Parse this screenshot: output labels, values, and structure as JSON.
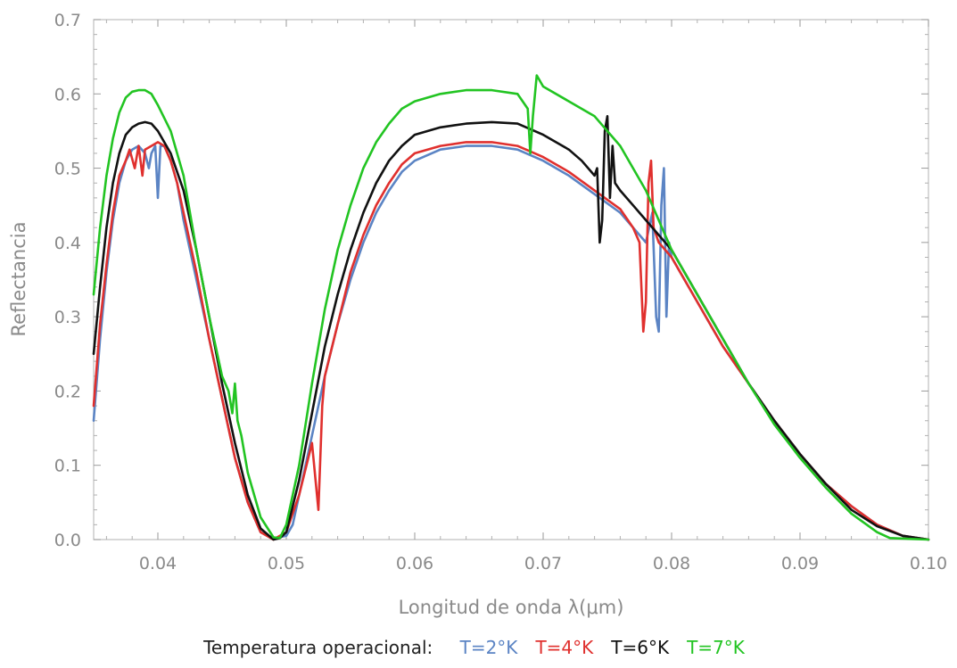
{
  "chart_data": {
    "type": "line",
    "xlabel": "Longitud de onda λ(μm)",
    "ylabel": "Reflectancia",
    "xlim": [
      0.035,
      0.1
    ],
    "ylim": [
      0,
      0.7
    ],
    "xticks": [
      "0.04",
      "0.05",
      "0.06",
      "0.07",
      "0.08",
      "0.09",
      "0.10"
    ],
    "xtick_values": [
      0.04,
      0.05,
      0.06,
      0.07,
      0.08,
      0.09,
      0.1
    ],
    "yticks": [
      "0.0",
      "0.1",
      "0.2",
      "0.3",
      "0.4",
      "0.5",
      "0.6",
      "0.7"
    ],
    "ytick_values": [
      0,
      0.1,
      0.2,
      0.3,
      0.4,
      0.5,
      0.6,
      0.7
    ],
    "legend_title": "Temperatura operacional:",
    "legend_position": "bottom",
    "grid": false,
    "series": [
      {
        "name": "T=2°K",
        "color": "#5b84c4",
        "points": [
          [
            0.035,
            0.16
          ],
          [
            0.0355,
            0.27
          ],
          [
            0.036,
            0.36
          ],
          [
            0.0365,
            0.43
          ],
          [
            0.037,
            0.48
          ],
          [
            0.0375,
            0.51
          ],
          [
            0.038,
            0.525
          ],
          [
            0.0385,
            0.53
          ],
          [
            0.039,
            0.52
          ],
          [
            0.0393,
            0.5
          ],
          [
            0.0395,
            0.52
          ],
          [
            0.0398,
            0.53
          ],
          [
            0.04,
            0.46
          ],
          [
            0.0402,
            0.53
          ],
          [
            0.0405,
            0.53
          ],
          [
            0.041,
            0.51
          ],
          [
            0.0415,
            0.48
          ],
          [
            0.042,
            0.43
          ],
          [
            0.043,
            0.35
          ],
          [
            0.044,
            0.27
          ],
          [
            0.045,
            0.19
          ],
          [
            0.046,
            0.11
          ],
          [
            0.047,
            0.05
          ],
          [
            0.048,
            0.01
          ],
          [
            0.049,
            0.002
          ],
          [
            0.05,
            0.005
          ],
          [
            0.0505,
            0.02
          ],
          [
            0.051,
            0.06
          ],
          [
            0.052,
            0.14
          ],
          [
            0.053,
            0.22
          ],
          [
            0.054,
            0.29
          ],
          [
            0.055,
            0.35
          ],
          [
            0.056,
            0.4
          ],
          [
            0.057,
            0.44
          ],
          [
            0.058,
            0.47
          ],
          [
            0.059,
            0.495
          ],
          [
            0.06,
            0.51
          ],
          [
            0.062,
            0.525
          ],
          [
            0.064,
            0.53
          ],
          [
            0.066,
            0.53
          ],
          [
            0.068,
            0.525
          ],
          [
            0.07,
            0.51
          ],
          [
            0.072,
            0.49
          ],
          [
            0.074,
            0.465
          ],
          [
            0.076,
            0.44
          ],
          [
            0.077,
            0.42
          ],
          [
            0.0775,
            0.41
          ],
          [
            0.078,
            0.4
          ],
          [
            0.0785,
            0.44
          ],
          [
            0.0788,
            0.3
          ],
          [
            0.079,
            0.28
          ],
          [
            0.0792,
            0.45
          ],
          [
            0.0794,
            0.5
          ],
          [
            0.0796,
            0.3
          ],
          [
            0.0798,
            0.4
          ],
          [
            0.08,
            0.38
          ],
          [
            0.082,
            0.32
          ],
          [
            0.084,
            0.26
          ],
          [
            0.086,
            0.21
          ],
          [
            0.088,
            0.16
          ],
          [
            0.09,
            0.115
          ],
          [
            0.092,
            0.075
          ],
          [
            0.094,
            0.045
          ],
          [
            0.096,
            0.02
          ],
          [
            0.098,
            0.005
          ],
          [
            0.1,
            0.0
          ]
        ]
      },
      {
        "name": "T=4°K",
        "color": "#e0302e",
        "points": [
          [
            0.035,
            0.18
          ],
          [
            0.0355,
            0.29
          ],
          [
            0.036,
            0.37
          ],
          [
            0.0365,
            0.44
          ],
          [
            0.037,
            0.49
          ],
          [
            0.0375,
            0.51
          ],
          [
            0.0378,
            0.525
          ],
          [
            0.0382,
            0.5
          ],
          [
            0.0385,
            0.53
          ],
          [
            0.0388,
            0.49
          ],
          [
            0.039,
            0.525
          ],
          [
            0.0395,
            0.53
          ],
          [
            0.04,
            0.535
          ],
          [
            0.0405,
            0.53
          ],
          [
            0.041,
            0.51
          ],
          [
            0.0415,
            0.48
          ],
          [
            0.042,
            0.44
          ],
          [
            0.043,
            0.36
          ],
          [
            0.044,
            0.27
          ],
          [
            0.045,
            0.19
          ],
          [
            0.046,
            0.11
          ],
          [
            0.047,
            0.05
          ],
          [
            0.048,
            0.01
          ],
          [
            0.049,
            0.0
          ],
          [
            0.0495,
            0.005
          ],
          [
            0.05,
            0.01
          ],
          [
            0.051,
            0.06
          ],
          [
            0.052,
            0.13
          ],
          [
            0.0525,
            0.04
          ],
          [
            0.0528,
            0.18
          ],
          [
            0.053,
            0.22
          ],
          [
            0.054,
            0.29
          ],
          [
            0.055,
            0.36
          ],
          [
            0.056,
            0.41
          ],
          [
            0.057,
            0.45
          ],
          [
            0.058,
            0.48
          ],
          [
            0.059,
            0.505
          ],
          [
            0.06,
            0.52
          ],
          [
            0.062,
            0.53
          ],
          [
            0.064,
            0.535
          ],
          [
            0.066,
            0.535
          ],
          [
            0.068,
            0.53
          ],
          [
            0.07,
            0.515
          ],
          [
            0.072,
            0.495
          ],
          [
            0.074,
            0.47
          ],
          [
            0.076,
            0.445
          ],
          [
            0.077,
            0.42
          ],
          [
            0.0775,
            0.4
          ],
          [
            0.0778,
            0.28
          ],
          [
            0.078,
            0.32
          ],
          [
            0.0782,
            0.48
          ],
          [
            0.0784,
            0.51
          ],
          [
            0.0786,
            0.42
          ],
          [
            0.079,
            0.4
          ],
          [
            0.08,
            0.38
          ],
          [
            0.082,
            0.32
          ],
          [
            0.084,
            0.26
          ],
          [
            0.086,
            0.21
          ],
          [
            0.088,
            0.16
          ],
          [
            0.09,
            0.115
          ],
          [
            0.092,
            0.075
          ],
          [
            0.094,
            0.045
          ],
          [
            0.096,
            0.02
          ],
          [
            0.098,
            0.005
          ],
          [
            0.1,
            0.0
          ]
        ]
      },
      {
        "name": "T=6°K",
        "color": "#111111",
        "points": [
          [
            0.035,
            0.25
          ],
          [
            0.0355,
            0.34
          ],
          [
            0.036,
            0.42
          ],
          [
            0.0365,
            0.48
          ],
          [
            0.037,
            0.52
          ],
          [
            0.0375,
            0.545
          ],
          [
            0.038,
            0.555
          ],
          [
            0.0385,
            0.56
          ],
          [
            0.039,
            0.562
          ],
          [
            0.0395,
            0.56
          ],
          [
            0.04,
            0.55
          ],
          [
            0.041,
            0.52
          ],
          [
            0.042,
            0.47
          ],
          [
            0.043,
            0.39
          ],
          [
            0.044,
            0.3
          ],
          [
            0.045,
            0.21
          ],
          [
            0.046,
            0.13
          ],
          [
            0.047,
            0.06
          ],
          [
            0.048,
            0.015
          ],
          [
            0.049,
            0.0
          ],
          [
            0.0495,
            0.002
          ],
          [
            0.05,
            0.01
          ],
          [
            0.051,
            0.08
          ],
          [
            0.052,
            0.17
          ],
          [
            0.053,
            0.26
          ],
          [
            0.054,
            0.33
          ],
          [
            0.055,
            0.39
          ],
          [
            0.056,
            0.44
          ],
          [
            0.057,
            0.48
          ],
          [
            0.058,
            0.51
          ],
          [
            0.059,
            0.53
          ],
          [
            0.06,
            0.545
          ],
          [
            0.062,
            0.555
          ],
          [
            0.064,
            0.56
          ],
          [
            0.066,
            0.562
          ],
          [
            0.068,
            0.56
          ],
          [
            0.07,
            0.545
          ],
          [
            0.072,
            0.525
          ],
          [
            0.073,
            0.51
          ],
          [
            0.074,
            0.49
          ],
          [
            0.0742,
            0.5
          ],
          [
            0.0744,
            0.4
          ],
          [
            0.0746,
            0.43
          ],
          [
            0.0748,
            0.55
          ],
          [
            0.075,
            0.57
          ],
          [
            0.0752,
            0.46
          ],
          [
            0.0754,
            0.53
          ],
          [
            0.0756,
            0.48
          ],
          [
            0.076,
            0.47
          ],
          [
            0.077,
            0.45
          ],
          [
            0.078,
            0.43
          ],
          [
            0.08,
            0.39
          ],
          [
            0.082,
            0.33
          ],
          [
            0.084,
            0.27
          ],
          [
            0.086,
            0.21
          ],
          [
            0.088,
            0.16
          ],
          [
            0.09,
            0.115
          ],
          [
            0.092,
            0.075
          ],
          [
            0.094,
            0.04
          ],
          [
            0.096,
            0.018
          ],
          [
            0.098,
            0.005
          ],
          [
            0.1,
            0.0
          ]
        ]
      },
      {
        "name": "T=7°K",
        "color": "#22c422",
        "points": [
          [
            0.035,
            0.33
          ],
          [
            0.0355,
            0.42
          ],
          [
            0.036,
            0.49
          ],
          [
            0.0365,
            0.54
          ],
          [
            0.037,
            0.575
          ],
          [
            0.0375,
            0.595
          ],
          [
            0.038,
            0.603
          ],
          [
            0.0385,
            0.605
          ],
          [
            0.039,
            0.605
          ],
          [
            0.0395,
            0.6
          ],
          [
            0.04,
            0.585
          ],
          [
            0.041,
            0.55
          ],
          [
            0.042,
            0.49
          ],
          [
            0.043,
            0.39
          ],
          [
            0.044,
            0.3
          ],
          [
            0.045,
            0.22
          ],
          [
            0.0455,
            0.2
          ],
          [
            0.0458,
            0.17
          ],
          [
            0.046,
            0.21
          ],
          [
            0.0462,
            0.16
          ],
          [
            0.0465,
            0.14
          ],
          [
            0.047,
            0.09
          ],
          [
            0.048,
            0.03
          ],
          [
            0.049,
            0.003
          ],
          [
            0.0495,
            0.002
          ],
          [
            0.05,
            0.02
          ],
          [
            0.051,
            0.1
          ],
          [
            0.052,
            0.21
          ],
          [
            0.053,
            0.31
          ],
          [
            0.054,
            0.39
          ],
          [
            0.055,
            0.45
          ],
          [
            0.056,
            0.5
          ],
          [
            0.057,
            0.535
          ],
          [
            0.058,
            0.56
          ],
          [
            0.059,
            0.58
          ],
          [
            0.06,
            0.59
          ],
          [
            0.062,
            0.6
          ],
          [
            0.064,
            0.605
          ],
          [
            0.066,
            0.605
          ],
          [
            0.068,
            0.6
          ],
          [
            0.0688,
            0.58
          ],
          [
            0.069,
            0.52
          ],
          [
            0.0692,
            0.57
          ],
          [
            0.0695,
            0.625
          ],
          [
            0.07,
            0.61
          ],
          [
            0.072,
            0.59
          ],
          [
            0.074,
            0.57
          ],
          [
            0.076,
            0.53
          ],
          [
            0.078,
            0.47
          ],
          [
            0.08,
            0.39
          ],
          [
            0.082,
            0.33
          ],
          [
            0.084,
            0.27
          ],
          [
            0.086,
            0.21
          ],
          [
            0.088,
            0.155
          ],
          [
            0.09,
            0.11
          ],
          [
            0.092,
            0.07
          ],
          [
            0.094,
            0.035
          ],
          [
            0.096,
            0.01
          ],
          [
            0.097,
            0.002
          ],
          [
            0.1,
            0.0
          ]
        ]
      }
    ]
  }
}
